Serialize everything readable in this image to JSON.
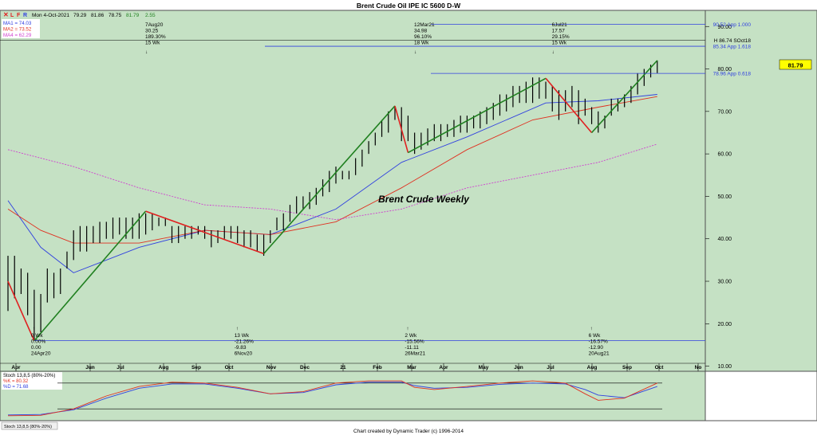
{
  "title": "Brent Crude Oil IPE IC 5600 D-W",
  "header": {
    "icons": [
      "close-icon",
      "l-icon",
      "f-icon",
      "r-icon"
    ],
    "date": "Mon 4-Oct-2021",
    "ohlc": [
      "79.29",
      "81.86",
      "78.75",
      "81.79",
      "2.55"
    ]
  },
  "ma_legend": [
    {
      "label": "MA1 = 74.03",
      "color": "#3040e0"
    },
    {
      "label": "MA2 = 73.52",
      "color": "#e03020"
    },
    {
      "label": "MA4 = 62.29",
      "color": "#d040d0"
    }
  ],
  "footer": "Chart created by Dynamic Trader  (c)  1996-2014",
  "colors": {
    "background": "#c5e1c4",
    "bars": "#000000",
    "up": "#208020",
    "down": "#e02020",
    "fib": "#3040e0"
  },
  "chart_data": [
    {
      "type": "line",
      "title": "Brent Crude Weekly",
      "x_tick_labels": [
        "Apr",
        "Jun",
        "Jul",
        "Aug",
        "Sep",
        "Oct",
        "Nov",
        "Dec",
        "21",
        "Feb",
        "Mar",
        "Apr",
        "May",
        "Jun",
        "Jul",
        "Aug",
        "Sep",
        "Oct",
        "No"
      ],
      "y_tick_labels": [
        "90.00",
        "80.00",
        "70.00",
        "60.00",
        "50.00",
        "40.00",
        "30.00",
        "20.00",
        "10.00"
      ],
      "ylim": [
        8.8,
        93.8
      ],
      "current_price": "81.79",
      "bars": [
        [
          36,
          23
        ],
        [
          36,
          26
        ],
        [
          33,
          27
        ],
        [
          32,
          22
        ],
        [
          28,
          16
        ],
        [
          27,
          18
        ],
        [
          33,
          25
        ],
        [
          32,
          26
        ],
        [
          33,
          27
        ],
        [
          37,
          33
        ],
        [
          42,
          35
        ],
        [
          43,
          37
        ],
        [
          43,
          37
        ],
        [
          43,
          39
        ],
        [
          44,
          39
        ],
        [
          44,
          40
        ],
        [
          45,
          40
        ],
        [
          45,
          41
        ],
        [
          45,
          40
        ],
        [
          45,
          40
        ],
        [
          46,
          40
        ],
        [
          46,
          41
        ],
        [
          46,
          42
        ],
        [
          45,
          43
        ],
        [
          45,
          43
        ],
        [
          43,
          39
        ],
        [
          43,
          39
        ],
        [
          43,
          40
        ],
        [
          43,
          40
        ],
        [
          43,
          41
        ],
        [
          43,
          40
        ],
        [
          42,
          38
        ],
        [
          42,
          39
        ],
        [
          43,
          40
        ],
        [
          43,
          40
        ],
        [
          43,
          39
        ],
        [
          42,
          38
        ],
        [
          42,
          38
        ],
        [
          41,
          37
        ],
        [
          41,
          36
        ],
        [
          42,
          39
        ],
        [
          45,
          42
        ],
        [
          46,
          42
        ],
        [
          48,
          44
        ],
        [
          50,
          46
        ],
        [
          50,
          47
        ],
        [
          51,
          47
        ],
        [
          52,
          48
        ],
        [
          54,
          50
        ],
        [
          56,
          51
        ],
        [
          57,
          53
        ],
        [
          56,
          54
        ],
        [
          56,
          54
        ],
        [
          59,
          55
        ],
        [
          61,
          57
        ],
        [
          63,
          60
        ],
        [
          65,
          62
        ],
        [
          68,
          64
        ],
        [
          70,
          65
        ],
        [
          71,
          68
        ],
        [
          71,
          63
        ],
        [
          69,
          63
        ],
        [
          65,
          60
        ],
        [
          65,
          61
        ],
        [
          66,
          62
        ],
        [
          67,
          63
        ],
        [
          67,
          63
        ],
        [
          67,
          64
        ],
        [
          68,
          64
        ],
        [
          69,
          65
        ],
        [
          69,
          65
        ],
        [
          69,
          66
        ],
        [
          70,
          66
        ],
        [
          71,
          67
        ],
        [
          72,
          68
        ],
        [
          74,
          69
        ],
        [
          74,
          70
        ],
        [
          76,
          71
        ],
        [
          76,
          72
        ],
        [
          77,
          72
        ],
        [
          78,
          72
        ],
        [
          78,
          73
        ],
        [
          77,
          73
        ],
        [
          76,
          70
        ],
        [
          75,
          68
        ],
        [
          75,
          70
        ],
        [
          76,
          71
        ],
        [
          75,
          67
        ],
        [
          73,
          69
        ],
        [
          71,
          67
        ],
        [
          70,
          65
        ],
        [
          69,
          66
        ],
        [
          73,
          69
        ],
        [
          73,
          70
        ],
        [
          74,
          71
        ],
        [
          76,
          72
        ],
        [
          79,
          74
        ],
        [
          80,
          76
        ],
        [
          81,
          78
        ],
        [
          82,
          79
        ]
      ],
      "zigzag": [
        {
          "i": 4,
          "y": 15.98,
          "c": "#e02020"
        },
        {
          "i": 0,
          "y": 30,
          "c": "#e02020"
        },
        {
          "i": 21,
          "y": 46.5,
          "c": "#208020"
        },
        {
          "i": 39,
          "y": 36.5,
          "c": "#e02020"
        },
        {
          "i": 59,
          "y": 71.3,
          "c": "#208020"
        },
        {
          "i": 61,
          "y": 60.3,
          "c": "#e02020"
        },
        {
          "i": 82,
          "y": 77.8,
          "c": "#208020"
        },
        {
          "i": 89,
          "y": 65.0,
          "c": "#e02020"
        },
        {
          "i": 99,
          "y": 82.0,
          "c": "#208020"
        }
      ],
      "ma1": [
        [
          0,
          49
        ],
        [
          5,
          38
        ],
        [
          10,
          32
        ],
        [
          20,
          38
        ],
        [
          30,
          42
        ],
        [
          40,
          41
        ],
        [
          50,
          47
        ],
        [
          60,
          58
        ],
        [
          70,
          64
        ],
        [
          82,
          72
        ],
        [
          90,
          72.5
        ],
        [
          99,
          74
        ]
      ],
      "ma2": [
        [
          0,
          47
        ],
        [
          5,
          42
        ],
        [
          10,
          39
        ],
        [
          20,
          39
        ],
        [
          30,
          42
        ],
        [
          40,
          41
        ],
        [
          50,
          44
        ],
        [
          60,
          52
        ],
        [
          70,
          61
        ],
        [
          80,
          68
        ],
        [
          90,
          71
        ],
        [
          99,
          73.5
        ]
      ],
      "ma4": [
        [
          0,
          61
        ],
        [
          10,
          57
        ],
        [
          20,
          52
        ],
        [
          30,
          48
        ],
        [
          40,
          47
        ],
        [
          50,
          44.5
        ],
        [
          60,
          47
        ],
        [
          70,
          52
        ],
        [
          80,
          55
        ],
        [
          90,
          58
        ],
        [
          99,
          62.3
        ]
      ],
      "fib_lines": [
        {
          "y": 90.52,
          "label": "90.52 App 1.000",
          "x0": 540
        },
        {
          "y": 85.34,
          "label": "85.34 App 1.618",
          "x0": 332
        },
        {
          "y": 78.96,
          "label": "78.96 App 0.618",
          "x0": 540
        }
      ],
      "hline": {
        "y": 86.74,
        "label": "H 86.74 SOct18"
      },
      "low_line": 16.0,
      "top_annotations": [
        {
          "i": 18,
          "lines": [
            "7Aug20",
            "30.25",
            "189.30%",
            "15 Wk"
          ]
        },
        {
          "i": 59,
          "lines": [
            "12Mar21",
            "34.98",
            "96.10%",
            "18 Wk"
          ]
        },
        {
          "i": 80,
          "lines": [
            "6Jul21",
            "17.57",
            "29.15%",
            "15 Wk"
          ]
        }
      ],
      "bottom_annotations": [
        {
          "i": 4,
          "lines": [
            "0 Wk",
            "0.00%",
            "0.00",
            "24Apr20"
          ]
        },
        {
          "i": 35,
          "lines": [
            "13 Wk",
            "-21.26%",
            "-9.83",
            "6Nov20"
          ]
        },
        {
          "i": 61,
          "lines": [
            "2 Wk",
            "-15.56%",
            "-11.11",
            "26Mar21"
          ]
        },
        {
          "i": 89,
          "lines": [
            "6 Wk",
            "-16.57%",
            "-12.90",
            "20Aug21"
          ]
        }
      ]
    },
    {
      "type": "line",
      "title": "Stoch 13,8,5 (80%-20%)",
      "legend": [
        {
          "label": "%K = 80.32",
          "color": "#e03020"
        },
        {
          "label": "%D = 71.68",
          "color": "#3040e0"
        }
      ],
      "tab_label": "Stoch 13,8,5 (80%-20%)",
      "ylim": [
        0,
        100
      ],
      "levels": [
        80,
        20
      ],
      "k": [
        [
          0,
          4
        ],
        [
          5,
          5
        ],
        [
          10,
          20
        ],
        [
          15,
          50
        ],
        [
          20,
          72
        ],
        [
          25,
          82
        ],
        [
          30,
          80
        ],
        [
          35,
          70
        ],
        [
          40,
          55
        ],
        [
          45,
          60
        ],
        [
          50,
          80
        ],
        [
          55,
          85
        ],
        [
          60,
          85
        ],
        [
          62,
          70
        ],
        [
          65,
          65
        ],
        [
          70,
          72
        ],
        [
          75,
          80
        ],
        [
          80,
          85
        ],
        [
          85,
          80
        ],
        [
          88,
          55
        ],
        [
          90,
          40
        ],
        [
          94,
          45
        ],
        [
          99,
          80
        ]
      ],
      "d": [
        [
          0,
          6
        ],
        [
          5,
          7
        ],
        [
          10,
          18
        ],
        [
          15,
          45
        ],
        [
          20,
          68
        ],
        [
          25,
          78
        ],
        [
          30,
          78
        ],
        [
          35,
          68
        ],
        [
          40,
          55
        ],
        [
          45,
          58
        ],
        [
          50,
          76
        ],
        [
          55,
          82
        ],
        [
          60,
          82
        ],
        [
          62,
          74
        ],
        [
          65,
          68
        ],
        [
          70,
          70
        ],
        [
          75,
          77
        ],
        [
          80,
          80
        ],
        [
          85,
          78
        ],
        [
          88,
          65
        ],
        [
          90,
          52
        ],
        [
          94,
          46
        ],
        [
          99,
          72
        ]
      ]
    }
  ]
}
